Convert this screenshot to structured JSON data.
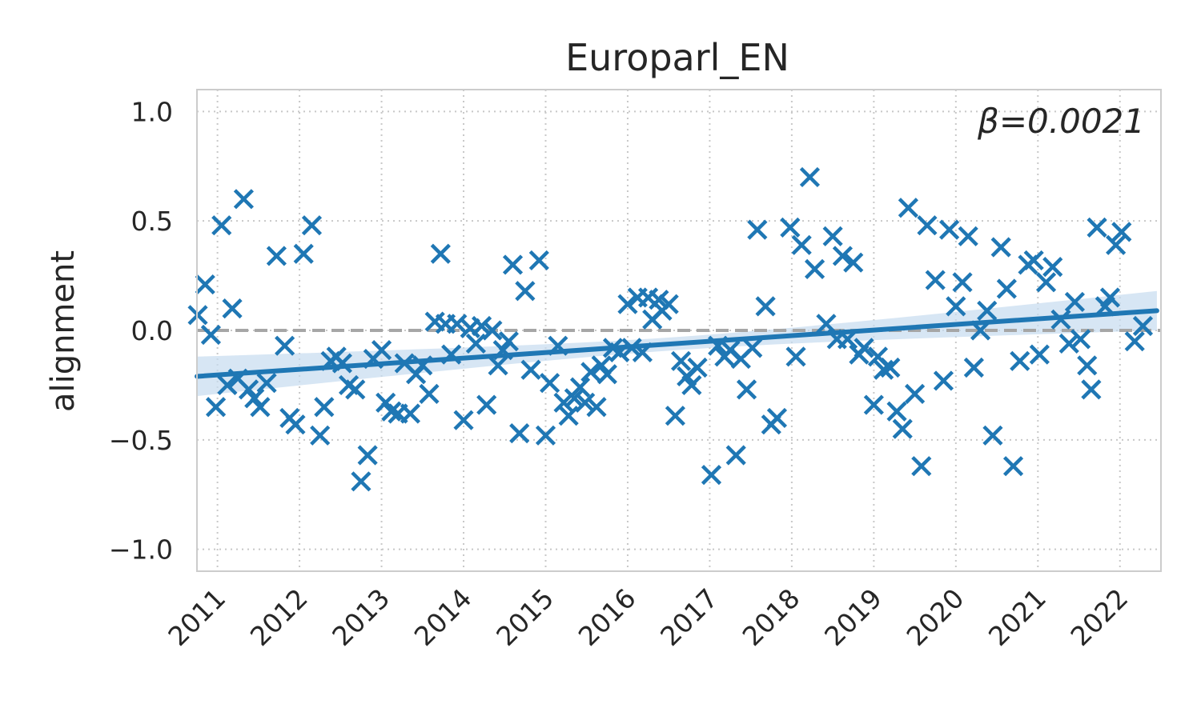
{
  "chart_data": {
    "type": "scatter",
    "title": "Europarl_EN",
    "xlabel": "",
    "ylabel": "alignment",
    "annotation": "β=0.0021",
    "xlim": [
      2010.75,
      2022.5
    ],
    "ylim": [
      -1.1,
      1.1
    ],
    "xticks": [
      2011,
      2012,
      2013,
      2014,
      2015,
      2016,
      2017,
      2018,
      2019,
      2020,
      2021,
      2022
    ],
    "yticks": [
      1.0,
      0.5,
      0.0,
      -0.5,
      -1.0
    ],
    "ytick_labels": [
      "1.0",
      "0.5",
      "0.0",
      "−0.5",
      "−1.0"
    ],
    "grid": true,
    "reference_line_y": 0.0,
    "colors": {
      "points": "#1f77b4",
      "fit": "#1f77b4",
      "band": "#c6dbef",
      "reference": "#a6a6a6"
    },
    "series": [
      {
        "marker": "x",
        "points": [
          [
            2010.76,
            0.07
          ],
          [
            2010.85,
            0.21
          ],
          [
            2010.92,
            -0.02
          ],
          [
            2010.98,
            -0.35
          ],
          [
            2011.05,
            0.48
          ],
          [
            2011.12,
            -0.25
          ],
          [
            2011.18,
            0.1
          ],
          [
            2011.25,
            -0.22
          ],
          [
            2011.32,
            0.6
          ],
          [
            2011.38,
            -0.27
          ],
          [
            2011.45,
            -0.31
          ],
          [
            2011.52,
            -0.35
          ],
          [
            2011.6,
            -0.24
          ],
          [
            2011.72,
            0.34
          ],
          [
            2011.82,
            -0.07
          ],
          [
            2011.88,
            -0.4
          ],
          [
            2011.95,
            -0.43
          ],
          [
            2012.05,
            0.35
          ],
          [
            2012.15,
            0.48
          ],
          [
            2012.25,
            -0.48
          ],
          [
            2012.3,
            -0.35
          ],
          [
            2012.38,
            -0.14
          ],
          [
            2012.45,
            -0.12
          ],
          [
            2012.52,
            -0.15
          ],
          [
            2012.6,
            -0.25
          ],
          [
            2012.68,
            -0.27
          ],
          [
            2012.75,
            -0.69
          ],
          [
            2012.83,
            -0.57
          ],
          [
            2012.9,
            -0.13
          ],
          [
            2013.0,
            -0.09
          ],
          [
            2013.05,
            -0.33
          ],
          [
            2013.12,
            -0.37
          ],
          [
            2013.2,
            -0.38
          ],
          [
            2013.28,
            -0.15
          ],
          [
            2013.35,
            -0.38
          ],
          [
            2013.42,
            -0.2
          ],
          [
            2013.5,
            -0.16
          ],
          [
            2013.58,
            -0.29
          ],
          [
            2013.65,
            0.04
          ],
          [
            2013.72,
            0.35
          ],
          [
            2013.78,
            0.03
          ],
          [
            2013.85,
            -0.11
          ],
          [
            2013.92,
            0.03
          ],
          [
            2014.0,
            -0.41
          ],
          [
            2014.08,
            0.01
          ],
          [
            2014.15,
            -0.06
          ],
          [
            2014.22,
            0.02
          ],
          [
            2014.28,
            -0.34
          ],
          [
            2014.35,
            0.0
          ],
          [
            2014.42,
            -0.16
          ],
          [
            2014.48,
            -0.09
          ],
          [
            2014.55,
            -0.05
          ],
          [
            2014.6,
            0.3
          ],
          [
            2014.68,
            -0.47
          ],
          [
            2014.75,
            0.18
          ],
          [
            2014.82,
            -0.18
          ],
          [
            2014.92,
            0.32
          ],
          [
            2015.0,
            -0.48
          ],
          [
            2015.05,
            -0.24
          ],
          [
            2015.15,
            -0.07
          ],
          [
            2015.22,
            -0.33
          ],
          [
            2015.28,
            -0.39
          ],
          [
            2015.35,
            -0.31
          ],
          [
            2015.42,
            -0.26
          ],
          [
            2015.48,
            -0.33
          ],
          [
            2015.55,
            -0.19
          ],
          [
            2015.62,
            -0.35
          ],
          [
            2015.68,
            -0.16
          ],
          [
            2015.75,
            -0.2
          ],
          [
            2015.82,
            -0.08
          ],
          [
            2015.9,
            -0.1
          ],
          [
            2016.0,
            0.12
          ],
          [
            2016.05,
            -0.08
          ],
          [
            2016.12,
            0.15
          ],
          [
            2016.18,
            -0.1
          ],
          [
            2016.25,
            0.15
          ],
          [
            2016.3,
            0.05
          ],
          [
            2016.38,
            0.14
          ],
          [
            2016.42,
            0.09
          ],
          [
            2016.5,
            0.12
          ],
          [
            2016.58,
            -0.39
          ],
          [
            2016.65,
            -0.14
          ],
          [
            2016.72,
            -0.21
          ],
          [
            2016.78,
            -0.25
          ],
          [
            2016.85,
            -0.17
          ],
          [
            2017.02,
            -0.66
          ],
          [
            2017.1,
            -0.07
          ],
          [
            2017.18,
            -0.12
          ],
          [
            2017.25,
            -0.09
          ],
          [
            2017.32,
            -0.57
          ],
          [
            2017.38,
            -0.13
          ],
          [
            2017.45,
            -0.27
          ],
          [
            2017.52,
            -0.08
          ],
          [
            2017.58,
            0.46
          ],
          [
            2017.68,
            0.11
          ],
          [
            2017.75,
            -0.43
          ],
          [
            2017.82,
            -0.4
          ],
          [
            2017.98,
            0.47
          ],
          [
            2018.05,
            -0.12
          ],
          [
            2018.12,
            0.39
          ],
          [
            2018.22,
            0.7
          ],
          [
            2018.28,
            0.28
          ],
          [
            2018.42,
            0.03
          ],
          [
            2018.5,
            0.43
          ],
          [
            2018.55,
            -0.04
          ],
          [
            2018.62,
            0.34
          ],
          [
            2018.68,
            -0.04
          ],
          [
            2018.75,
            0.31
          ],
          [
            2018.82,
            -0.11
          ],
          [
            2018.88,
            -0.08
          ],
          [
            2019.0,
            -0.34
          ],
          [
            2019.05,
            -0.12
          ],
          [
            2019.12,
            -0.18
          ],
          [
            2019.2,
            -0.17
          ],
          [
            2019.28,
            -0.37
          ],
          [
            2019.35,
            -0.45
          ],
          [
            2019.42,
            0.56
          ],
          [
            2019.5,
            -0.29
          ],
          [
            2019.58,
            -0.62
          ],
          [
            2019.65,
            0.48
          ],
          [
            2019.75,
            0.23
          ],
          [
            2019.85,
            -0.23
          ],
          [
            2019.92,
            0.46
          ],
          [
            2020.0,
            0.11
          ],
          [
            2020.08,
            0.22
          ],
          [
            2020.15,
            0.43
          ],
          [
            2020.22,
            -0.17
          ],
          [
            2020.3,
            0.0
          ],
          [
            2020.38,
            0.09
          ],
          [
            2020.45,
            -0.48
          ],
          [
            2020.55,
            0.38
          ],
          [
            2020.62,
            0.19
          ],
          [
            2020.7,
            -0.62
          ],
          [
            2020.78,
            -0.14
          ],
          [
            2020.88,
            0.3
          ],
          [
            2020.95,
            0.32
          ],
          [
            2021.02,
            -0.11
          ],
          [
            2021.1,
            0.22
          ],
          [
            2021.18,
            0.29
          ],
          [
            2021.28,
            0.05
          ],
          [
            2021.38,
            -0.06
          ],
          [
            2021.45,
            0.13
          ],
          [
            2021.52,
            -0.04
          ],
          [
            2021.6,
            -0.16
          ],
          [
            2021.65,
            -0.27
          ],
          [
            2021.72,
            0.47
          ],
          [
            2021.82,
            0.11
          ],
          [
            2021.88,
            0.15
          ],
          [
            2021.95,
            0.39
          ],
          [
            2022.02,
            0.45
          ],
          [
            2022.18,
            -0.05
          ],
          [
            2022.28,
            0.02
          ]
        ]
      }
    ],
    "trend": {
      "x": [
        2010.75,
        2022.45
      ],
      "y": [
        -0.21,
        0.09
      ],
      "ci_half_width_at_ends": [
        0.09,
        0.09
      ],
      "ci_half_width_mid": 0.03
    }
  }
}
